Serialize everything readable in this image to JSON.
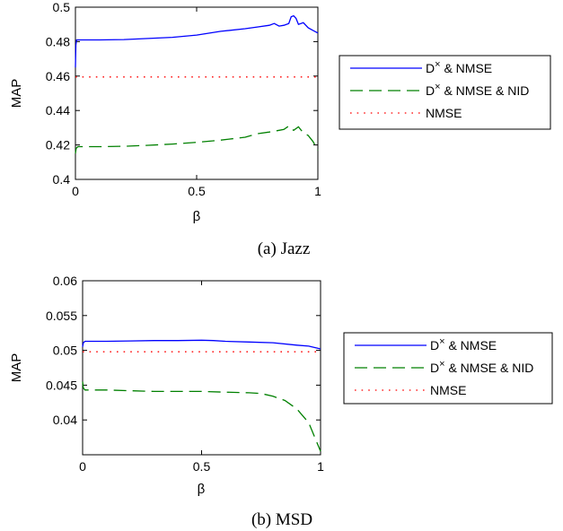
{
  "chart_data": [
    {
      "type": "line",
      "caption": "(a) Jazz",
      "xlabel": "β",
      "ylabel": "MAP",
      "xlim": [
        0,
        1
      ],
      "ylim": [
        0.4,
        0.5
      ],
      "xticks": [
        "0",
        "0.5",
        "1"
      ],
      "yticks": [
        "0.4",
        "0.42",
        "0.44",
        "0.46",
        "0.48",
        "0.5"
      ],
      "grid": false,
      "legend_position": "right",
      "series": [
        {
          "name": "D× & NMSE",
          "color": "#0000ff",
          "dash": "solid",
          "x": [
            0,
            0.002,
            0.005,
            0.1,
            0.2,
            0.3,
            0.4,
            0.5,
            0.6,
            0.7,
            0.75,
            0.8,
            0.82,
            0.84,
            0.86,
            0.88,
            0.89,
            0.9,
            0.91,
            0.92,
            0.94,
            0.96,
            0.98,
            1.0
          ],
          "y": [
            0.465,
            0.478,
            0.481,
            0.481,
            0.4812,
            0.4818,
            0.4825,
            0.4838,
            0.486,
            0.4875,
            0.4885,
            0.4895,
            0.4905,
            0.489,
            0.4895,
            0.4905,
            0.4945,
            0.495,
            0.4935,
            0.49,
            0.491,
            0.488,
            0.4865,
            0.485
          ]
        },
        {
          "name": "D× & NMSE & NID",
          "color": "#008000",
          "dash": "dashed",
          "x": [
            0,
            0.003,
            0.01,
            0.1,
            0.2,
            0.3,
            0.4,
            0.5,
            0.6,
            0.7,
            0.75,
            0.8,
            0.84,
            0.86,
            0.88,
            0.89,
            0.9,
            0.92,
            0.94,
            0.96,
            0.98,
            1.0
          ],
          "y": [
            0.415,
            0.418,
            0.419,
            0.419,
            0.4192,
            0.4198,
            0.4205,
            0.4215,
            0.4228,
            0.4245,
            0.4265,
            0.4275,
            0.4285,
            0.429,
            0.431,
            0.4295,
            0.4285,
            0.4305,
            0.427,
            0.4255,
            0.422,
            0.417
          ]
        },
        {
          "name": "NMSE",
          "color": "#ff0000",
          "dash": "dotted",
          "x": [
            0,
            1
          ],
          "y": [
            0.4595,
            0.4595
          ]
        }
      ]
    },
    {
      "type": "line",
      "caption": "(b) MSD",
      "xlabel": "β",
      "ylabel": "MAP",
      "xlim": [
        0,
        1
      ],
      "ylim": [
        0.035,
        0.06
      ],
      "xticks": [
        "0",
        "0.5",
        "1"
      ],
      "yticks": [
        "0.04",
        "0.045",
        "0.05",
        "0.055",
        "0.06"
      ],
      "grid": false,
      "legend_position": "right",
      "series": [
        {
          "name": "D× & NMSE",
          "color": "#0000ff",
          "dash": "solid",
          "x": [
            0,
            0.003,
            0.01,
            0.1,
            0.2,
            0.3,
            0.4,
            0.5,
            0.55,
            0.6,
            0.7,
            0.8,
            0.9,
            0.95,
            1.0
          ],
          "y": [
            0.0505,
            0.0511,
            0.0513,
            0.0513,
            0.05135,
            0.0514,
            0.0514,
            0.05145,
            0.0514,
            0.0513,
            0.0512,
            0.0511,
            0.05075,
            0.0506,
            0.0502
          ]
        },
        {
          "name": "D× & NMSE & NID",
          "color": "#008000",
          "dash": "dashed",
          "x": [
            0,
            0.003,
            0.01,
            0.1,
            0.2,
            0.3,
            0.4,
            0.5,
            0.6,
            0.7,
            0.75,
            0.8,
            0.85,
            0.9,
            0.95,
            1.0
          ],
          "y": [
            0.0455,
            0.0446,
            0.0443,
            0.0443,
            0.0442,
            0.0441,
            0.0441,
            0.0441,
            0.044,
            0.0439,
            0.0438,
            0.0434,
            0.0428,
            0.0416,
            0.0396,
            0.0355
          ]
        },
        {
          "name": "NMSE",
          "color": "#ff0000",
          "dash": "dotted",
          "x": [
            0,
            1
          ],
          "y": [
            0.0498,
            0.0498
          ]
        }
      ]
    }
  ]
}
